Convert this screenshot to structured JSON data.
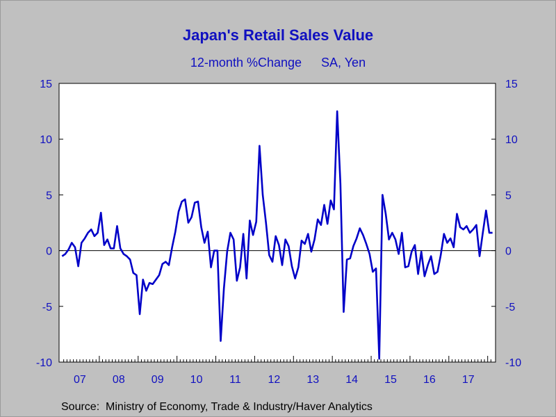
{
  "chart_data": {
    "type": "line",
    "title": "Japan's Retail Sales Value",
    "subtitle": [
      "12-month %Change",
      "SA, Yen"
    ],
    "source_label": "Source:",
    "source": "Ministry of Economy, Trade & Industry/Haver Analytics",
    "ylim": [
      -10,
      15
    ],
    "yticks": [
      -10,
      -5,
      0,
      5,
      10,
      15
    ],
    "ytick_labels": [
      "-10",
      "-5",
      "0",
      "5",
      "10",
      "15"
    ],
    "year_labels": [
      "07",
      "08",
      "09",
      "10",
      "11",
      "12",
      "13",
      "14",
      "15",
      "16",
      "17"
    ],
    "x_start": "2007-01",
    "grid": false,
    "zero_line": true,
    "line_color": "#0000c8",
    "series": [
      {
        "values": [
          -0.5,
          -0.3,
          0.1,
          0.7,
          0.3,
          -1.4,
          0.7,
          1.1,
          1.6,
          1.9,
          1.3,
          1.6,
          3.4,
          0.5,
          1.0,
          0.2,
          0.2,
          2.2,
          0.2,
          -0.3,
          -0.5,
          -0.8,
          -2.0,
          -2.2,
          -5.7,
          -2.6,
          -3.6,
          -2.9,
          -3.0,
          -2.6,
          -2.2,
          -1.2,
          -1.0,
          -1.3,
          0.3,
          1.7,
          3.5,
          4.4,
          4.6,
          2.5,
          3.0,
          4.3,
          4.4,
          2.1,
          0.7,
          1.7,
          -1.5,
          0.0,
          0.0,
          -8.1,
          -3.4,
          -0.1,
          1.6,
          1.0,
          -2.7,
          -1.5,
          1.5,
          -2.5,
          2.7,
          1.4,
          2.6,
          9.4,
          5.0,
          2.5,
          -0.4,
          -1.0,
          1.3,
          0.5,
          -1.3,
          1.0,
          0.4,
          -1.4,
          -2.5,
          -1.5,
          0.9,
          0.6,
          1.5,
          -0.1,
          1.0,
          2.8,
          2.3,
          4.1,
          2.4,
          4.5,
          3.7,
          12.5,
          6.0,
          -5.5,
          -0.8,
          -0.7,
          0.4,
          1.1,
          2.0,
          1.4,
          0.6,
          -0.3,
          -1.9,
          -1.6,
          -9.7,
          5.0,
          3.3,
          1.0,
          1.6,
          1.0,
          -0.3,
          1.6,
          -1.5,
          -1.4,
          -0.1,
          0.5,
          -2.1,
          -0.1,
          -2.3,
          -1.3,
          -0.5,
          -2.1,
          -1.9,
          -0.4,
          1.5,
          0.7,
          1.1,
          0.3,
          3.3,
          2.1,
          1.9,
          2.2,
          1.6,
          1.9,
          2.3,
          -0.5,
          1.6,
          3.6,
          1.6,
          1.6
        ]
      }
    ]
  }
}
